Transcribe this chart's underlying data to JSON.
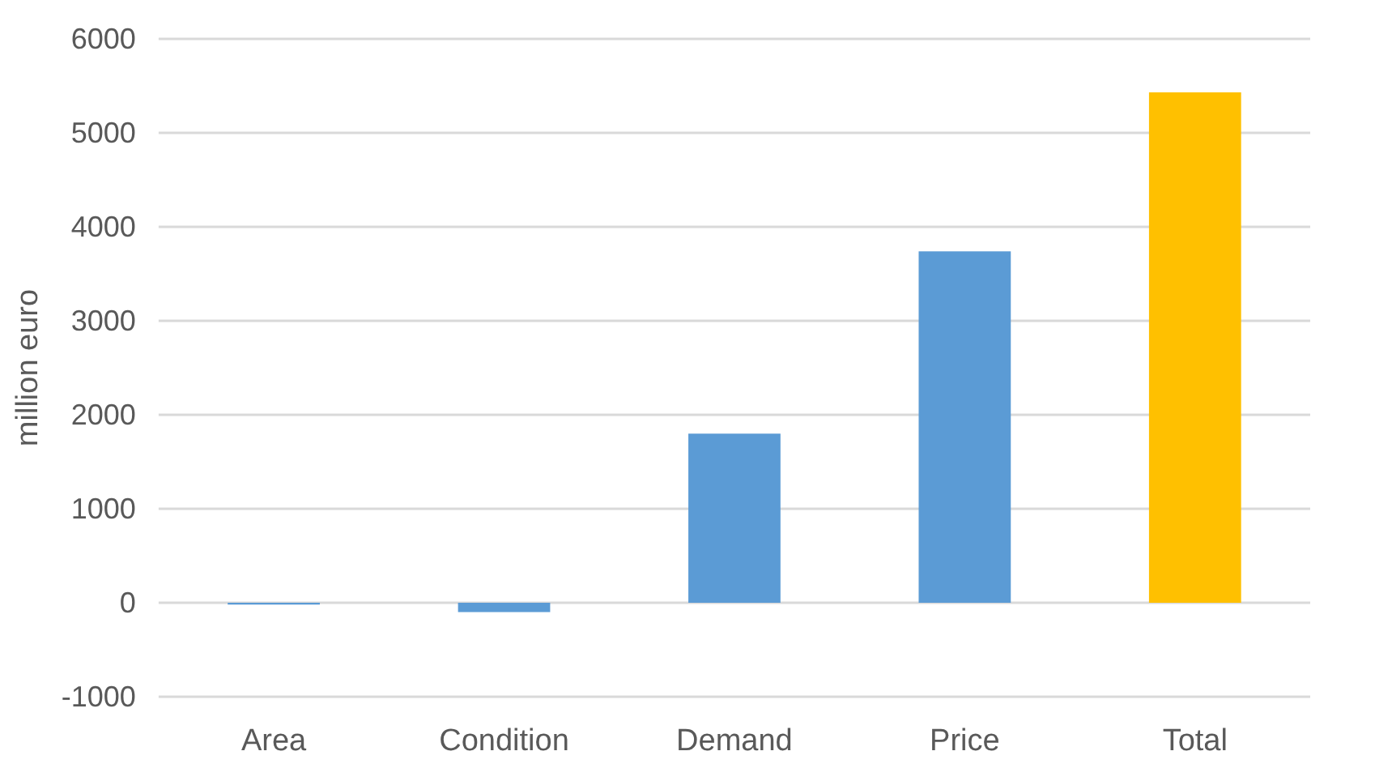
{
  "chart_data": {
    "type": "bar",
    "ylabel": "million euro",
    "categories": [
      "Area",
      "Condition",
      "Demand",
      "Price",
      "Total"
    ],
    "values": [
      -20,
      -100,
      1800,
      3740,
      5430
    ],
    "colors": [
      "#5b9bd5",
      "#5b9bd5",
      "#5b9bd5",
      "#5b9bd5",
      "#ffc000"
    ],
    "ylim": [
      -1000,
      6000
    ],
    "yticks": [
      -1000,
      0,
      1000,
      2000,
      3000,
      4000,
      5000,
      6000
    ],
    "grid": "y"
  }
}
